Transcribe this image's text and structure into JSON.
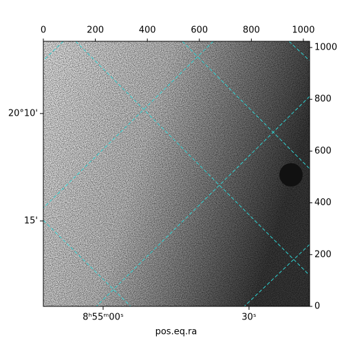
{
  "chart_data": {
    "type": "image",
    "xlabel": "pos.eq.ra",
    "xlim": [
      0,
      1024
    ],
    "ylim": [
      0,
      1024
    ],
    "xticks": [
      0,
      200,
      400,
      600,
      800,
      1000
    ],
    "yticks": [
      0,
      200,
      400,
      600,
      800,
      1000
    ],
    "ra_ticks": [
      {
        "value": 230,
        "label": "8ʰ55ᵐ00ˢ"
      },
      {
        "value": 791,
        "label": "30ˢ"
      }
    ],
    "dec_ticks": [
      {
        "value": 745,
        "label": "20°10'"
      },
      {
        "value": 330,
        "label": "15'"
      }
    ]
  }
}
